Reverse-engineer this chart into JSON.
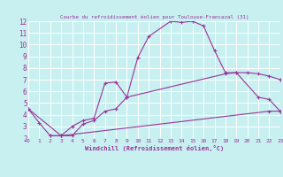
{
  "title": "Courbe du refroidissement éolien pour Toulouse-Francazal (31)",
  "xlabel": "Windchill (Refroidissement éolien,°C)",
  "bg_color": "#c8f0f0",
  "line_color": "#993399",
  "grid_color": "#ffffff",
  "xlim": [
    0,
    23
  ],
  "ylim": [
    2,
    12
  ],
  "xticks": [
    0,
    1,
    2,
    3,
    4,
    5,
    6,
    7,
    8,
    9,
    10,
    11,
    12,
    13,
    14,
    15,
    16,
    17,
    18,
    19,
    20,
    21,
    22,
    23
  ],
  "yticks": [
    2,
    3,
    4,
    5,
    6,
    7,
    8,
    9,
    10,
    11,
    12
  ],
  "series": [
    {
      "x": [
        0,
        1,
        2,
        3,
        4,
        5,
        6,
        7,
        8,
        9,
        10,
        11,
        13,
        14,
        15,
        16,
        17,
        18,
        19,
        21,
        22,
        23
      ],
      "y": [
        4.5,
        3.3,
        2.2,
        2.2,
        3.0,
        3.5,
        3.7,
        6.7,
        6.8,
        5.5,
        8.9,
        10.7,
        12.0,
        11.9,
        12.0,
        11.6,
        9.5,
        7.6,
        7.6,
        5.5,
        5.3,
        4.3
      ]
    },
    {
      "x": [
        0,
        3,
        4,
        5,
        6,
        7,
        8,
        9,
        18,
        19,
        20,
        21,
        22,
        23
      ],
      "y": [
        4.5,
        2.2,
        2.2,
        3.2,
        3.5,
        4.3,
        4.5,
        5.5,
        7.5,
        7.6,
        7.6,
        7.5,
        7.3,
        7.0
      ]
    },
    {
      "x": [
        2,
        3,
        22,
        23
      ],
      "y": [
        2.2,
        2.2,
        4.3,
        4.3
      ]
    }
  ]
}
